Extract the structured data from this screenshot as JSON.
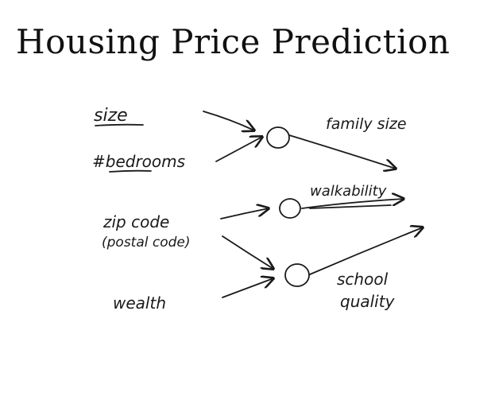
{
  "title": "Housing Price Prediction",
  "inputs": {
    "size": "size",
    "bedrooms": "#bedrooms",
    "zip_line1": "zip code",
    "zip_line2": "(postal code)",
    "wealth": "wealth"
  },
  "hidden": {
    "family_size": "family size",
    "walkability": "walkability",
    "school_line1": "school",
    "school_line2": "quality"
  },
  "colors": {
    "ink": "#1a1a1a",
    "background": "#ffffff"
  }
}
